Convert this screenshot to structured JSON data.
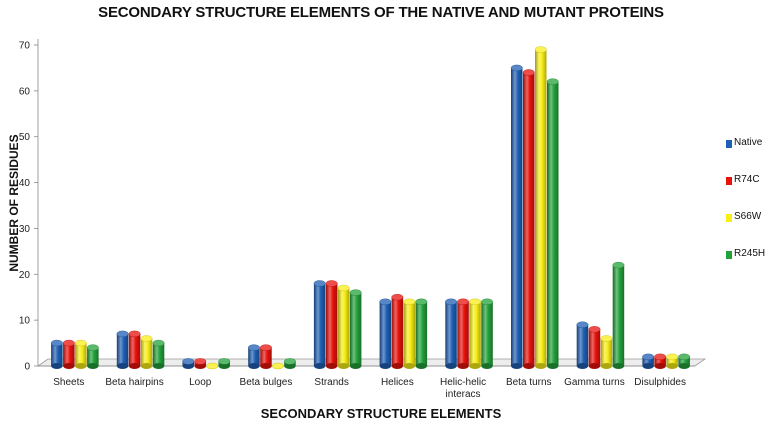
{
  "chart_data": {
    "type": "bar",
    "title": "SECONDARY STRUCTURE ELEMENTS OF THE NATIVE AND MUTANT PROTEINS",
    "xlabel": "SECONDARY STRUCTURE ELEMENTS",
    "ylabel": "NUMBER OF RESIDUES",
    "ylim": [
      0,
      70
    ],
    "yticks": [
      0,
      10,
      20,
      30,
      40,
      50,
      60,
      70
    ],
    "grid": false,
    "legend_position": "right",
    "categories": [
      "Sheets",
      "Beta hairpins",
      "Loop",
      "Beta bulges",
      "Strands",
      "Helices",
      "Helic-helic interacs",
      "Beta turns",
      "Gamma turns",
      "Disulphides"
    ],
    "category_lines": [
      [
        "Sheets"
      ],
      [
        "Beta hairpins"
      ],
      [
        "Loop"
      ],
      [
        "Beta bulges"
      ],
      [
        "Strands"
      ],
      [
        "Helices"
      ],
      [
        "Helic-helic",
        "interacs"
      ],
      [
        "Beta turns"
      ],
      [
        "Gamma turns"
      ],
      [
        "Disulphides"
      ]
    ],
    "series": [
      {
        "name": "Native",
        "color": "#1f5fb4",
        "values": [
          5,
          7,
          1,
          4,
          18,
          14,
          14,
          65,
          9,
          2
        ]
      },
      {
        "name": "R74C",
        "color": "#e8120c",
        "values": [
          5,
          7,
          1,
          4,
          18,
          15,
          14,
          64,
          8,
          2
        ]
      },
      {
        "name": "S66W",
        "color": "#f7ee16",
        "values": [
          5,
          6,
          0,
          0,
          17,
          14,
          14,
          69,
          6,
          2
        ]
      },
      {
        "name": "R245H",
        "color": "#23a13a",
        "values": [
          4,
          5,
          1,
          1,
          16,
          14,
          14,
          62,
          22,
          2
        ]
      }
    ]
  }
}
